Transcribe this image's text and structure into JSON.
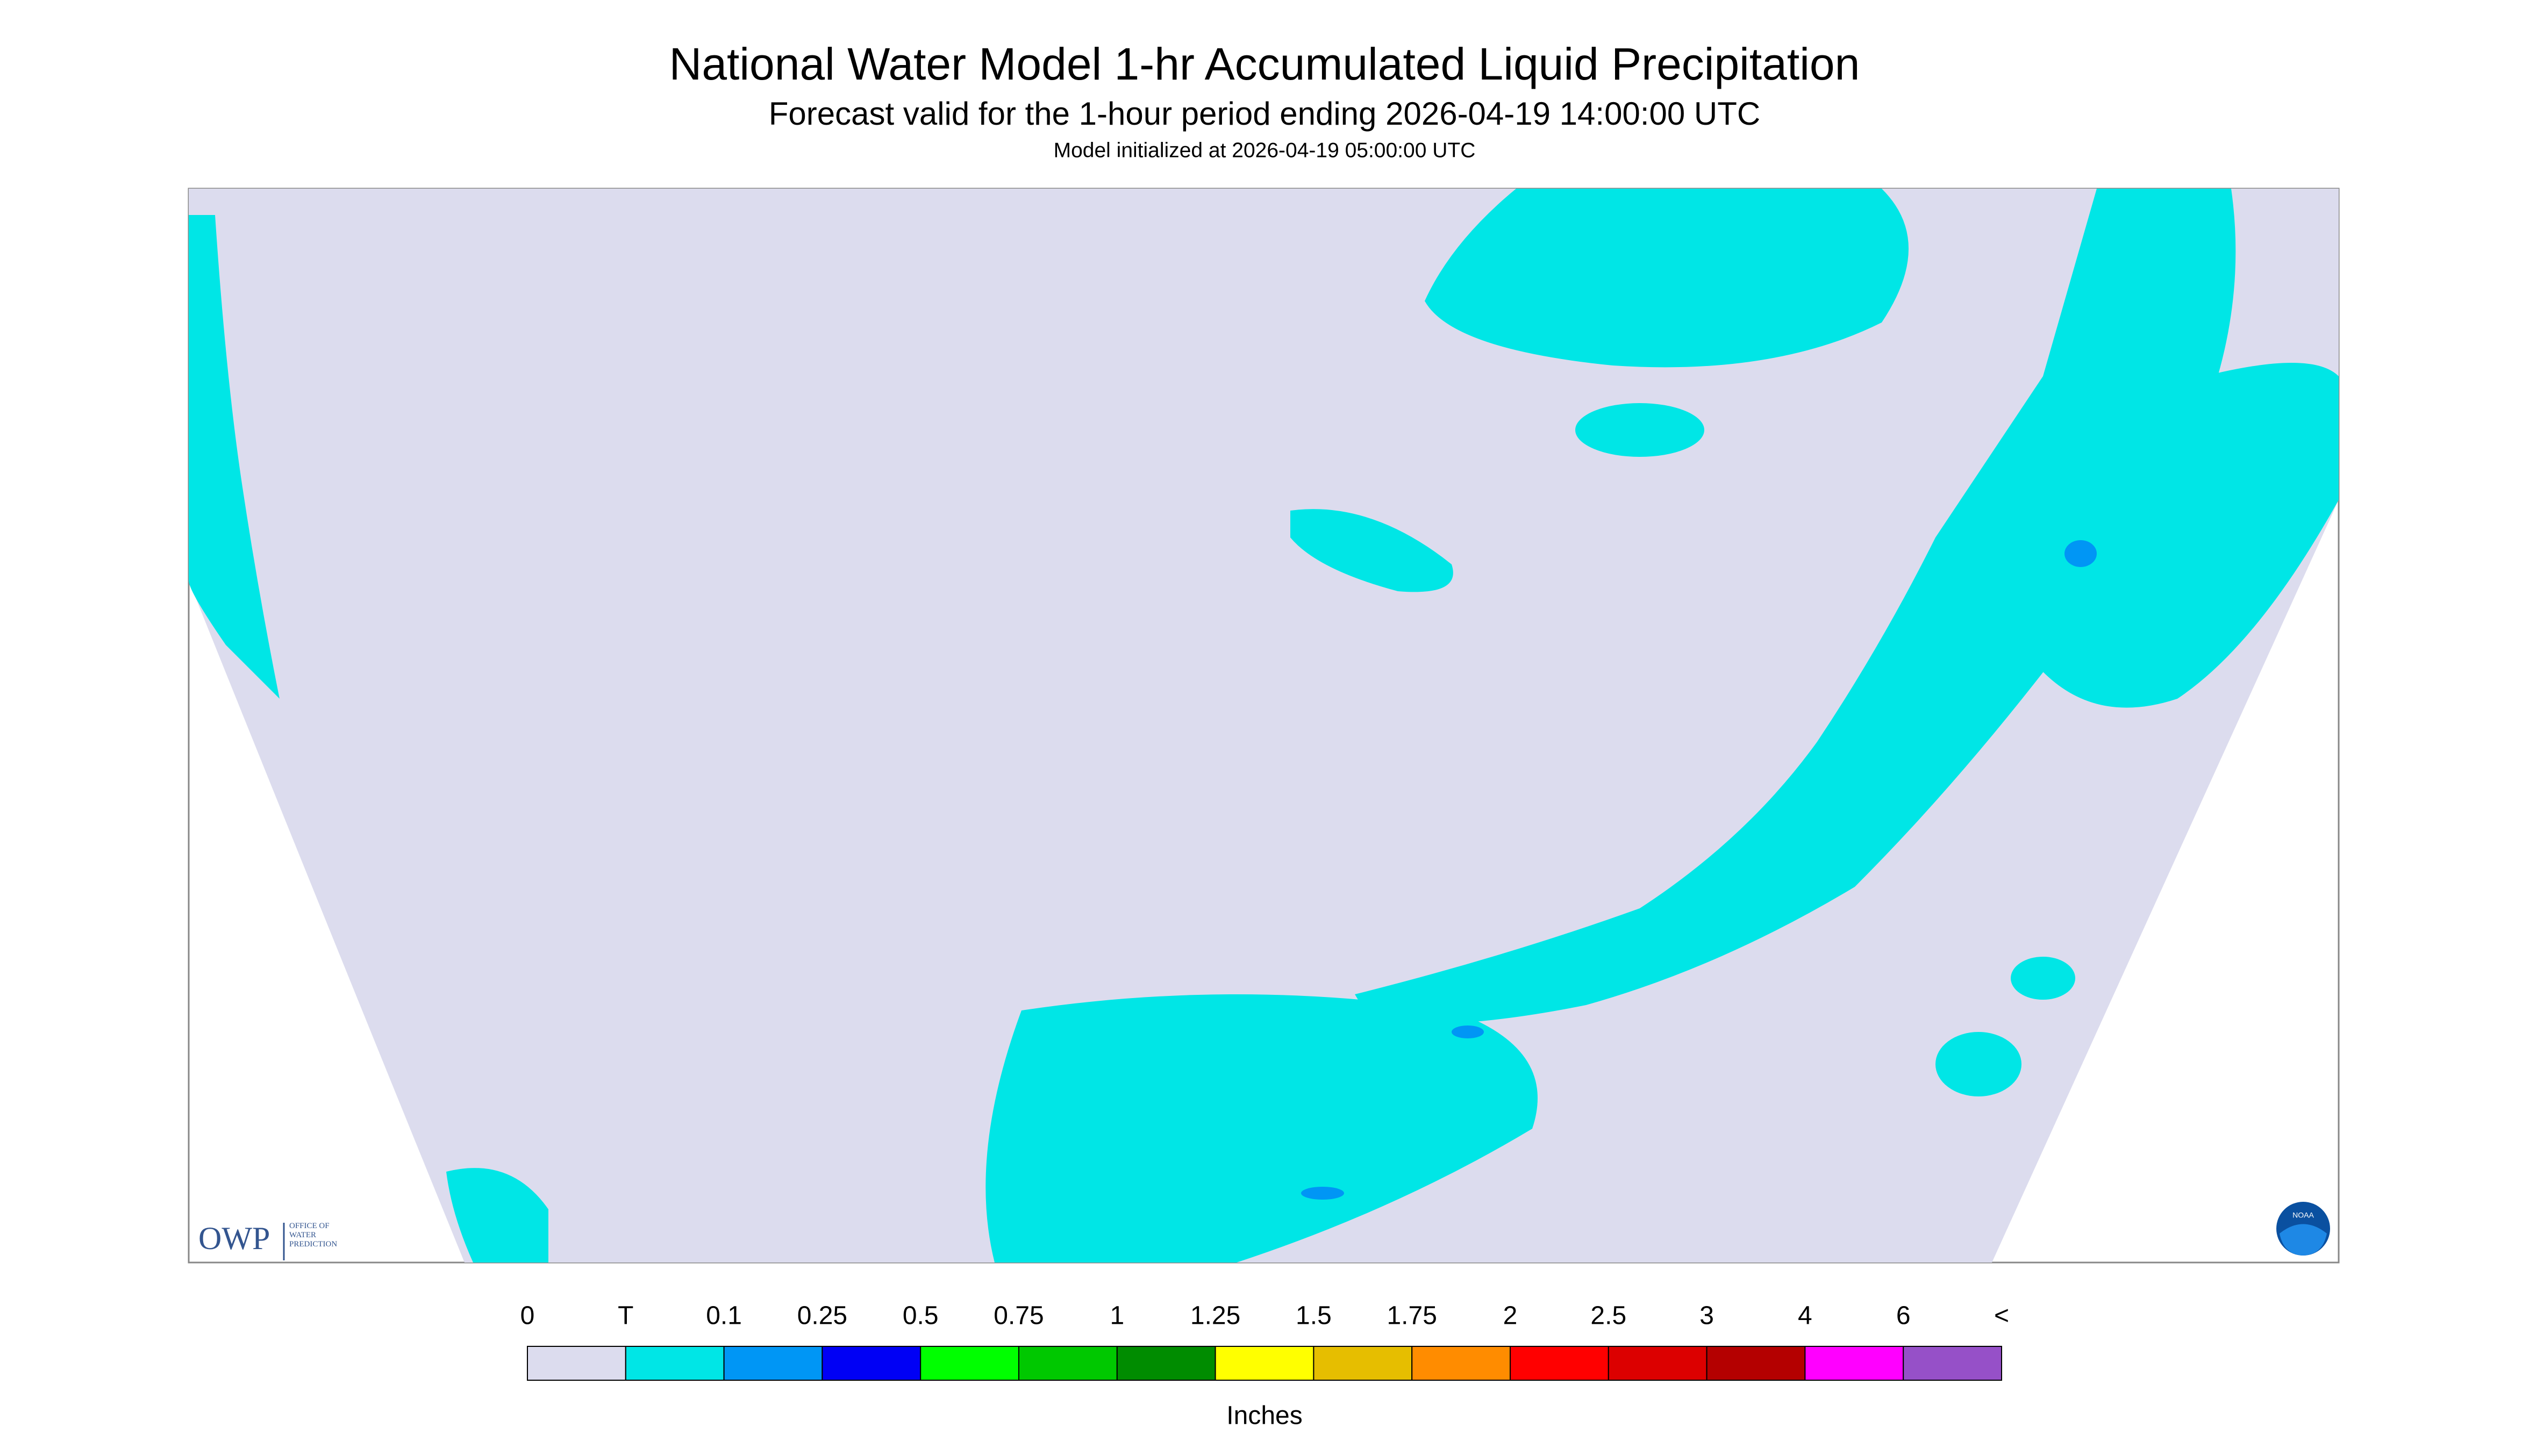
{
  "header": {
    "title": "National Water Model 1-hr Accumulated Liquid Precipitation",
    "subtitle": "Forecast valid for the 1-hour period ending 2026-04-19 14:00:00 UTC",
    "initialized": "Model initialized at 2026-04-19 05:00:00 UTC"
  },
  "logos": {
    "owp": "OWP",
    "owp_lines": [
      "OFFICE OF",
      "WATER",
      "PREDICTION"
    ],
    "noaa": "NOAA"
  },
  "legend": {
    "labels": [
      "0",
      "T",
      "0.1",
      "0.25",
      "0.5",
      "0.75",
      "1",
      "1.25",
      "1.5",
      "1.75",
      "2",
      "2.5",
      "3",
      "4",
      "6",
      "<"
    ],
    "colors": [
      "#dcdcee",
      "#00e6e6",
      "#0096f5",
      "#0000f5",
      "#00ff00",
      "#00c800",
      "#008c00",
      "#ffff00",
      "#e6be00",
      "#ff8c00",
      "#ff0000",
      "#dc0000",
      "#b40000",
      "#ff00ff",
      "#9650c8"
    ],
    "unit": "Inches"
  }
}
